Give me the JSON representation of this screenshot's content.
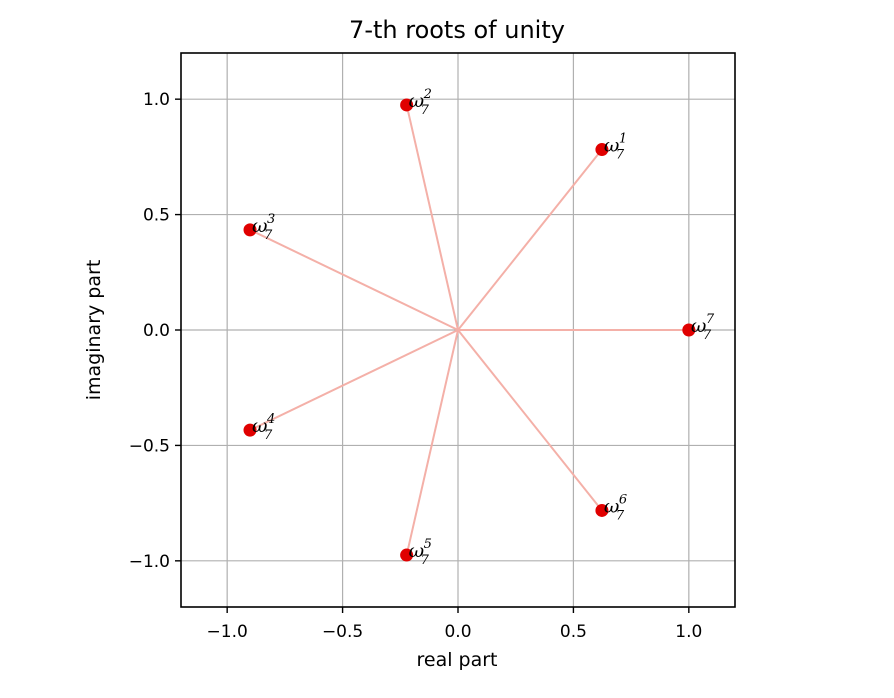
{
  "chart_data": {
    "type": "scatter",
    "title": "7-th roots of unity",
    "xlabel": "real part",
    "ylabel": "imaginary part",
    "xlim": [
      -1.2,
      1.2
    ],
    "ylim": [
      -1.2,
      1.2
    ],
    "xticks": [
      -1.0,
      -0.5,
      0.0,
      0.5,
      1.0
    ],
    "yticks": [
      -1.0,
      -0.5,
      0.0,
      0.5,
      1.0
    ],
    "xtick_labels": [
      "−1.0",
      "−0.5",
      "0.0",
      "0.5",
      "1.0"
    ],
    "ytick_labels": [
      "−1.0",
      "−0.5",
      "0.0",
      "0.5",
      "1.0"
    ],
    "grid": true,
    "point_color": "#e00000",
    "spoke_color": "#f4b0a8",
    "points": [
      {
        "x": 0.6235,
        "y": 0.7818,
        "base": "ω",
        "sub": "7",
        "sup": "1"
      },
      {
        "x": -0.2225,
        "y": 0.9749,
        "base": "ω",
        "sub": "7",
        "sup": "2"
      },
      {
        "x": -0.901,
        "y": 0.4339,
        "base": "ω",
        "sub": "7",
        "sup": "3"
      },
      {
        "x": -0.901,
        "y": -0.4339,
        "base": "ω",
        "sub": "7",
        "sup": "4"
      },
      {
        "x": -0.2225,
        "y": -0.9749,
        "base": "ω",
        "sub": "7",
        "sup": "5"
      },
      {
        "x": 0.6235,
        "y": -0.7818,
        "base": "ω",
        "sub": "7",
        "sup": "6"
      },
      {
        "x": 1.0,
        "y": 0.0,
        "base": "ω",
        "sub": "7",
        "sup": "7"
      }
    ]
  }
}
